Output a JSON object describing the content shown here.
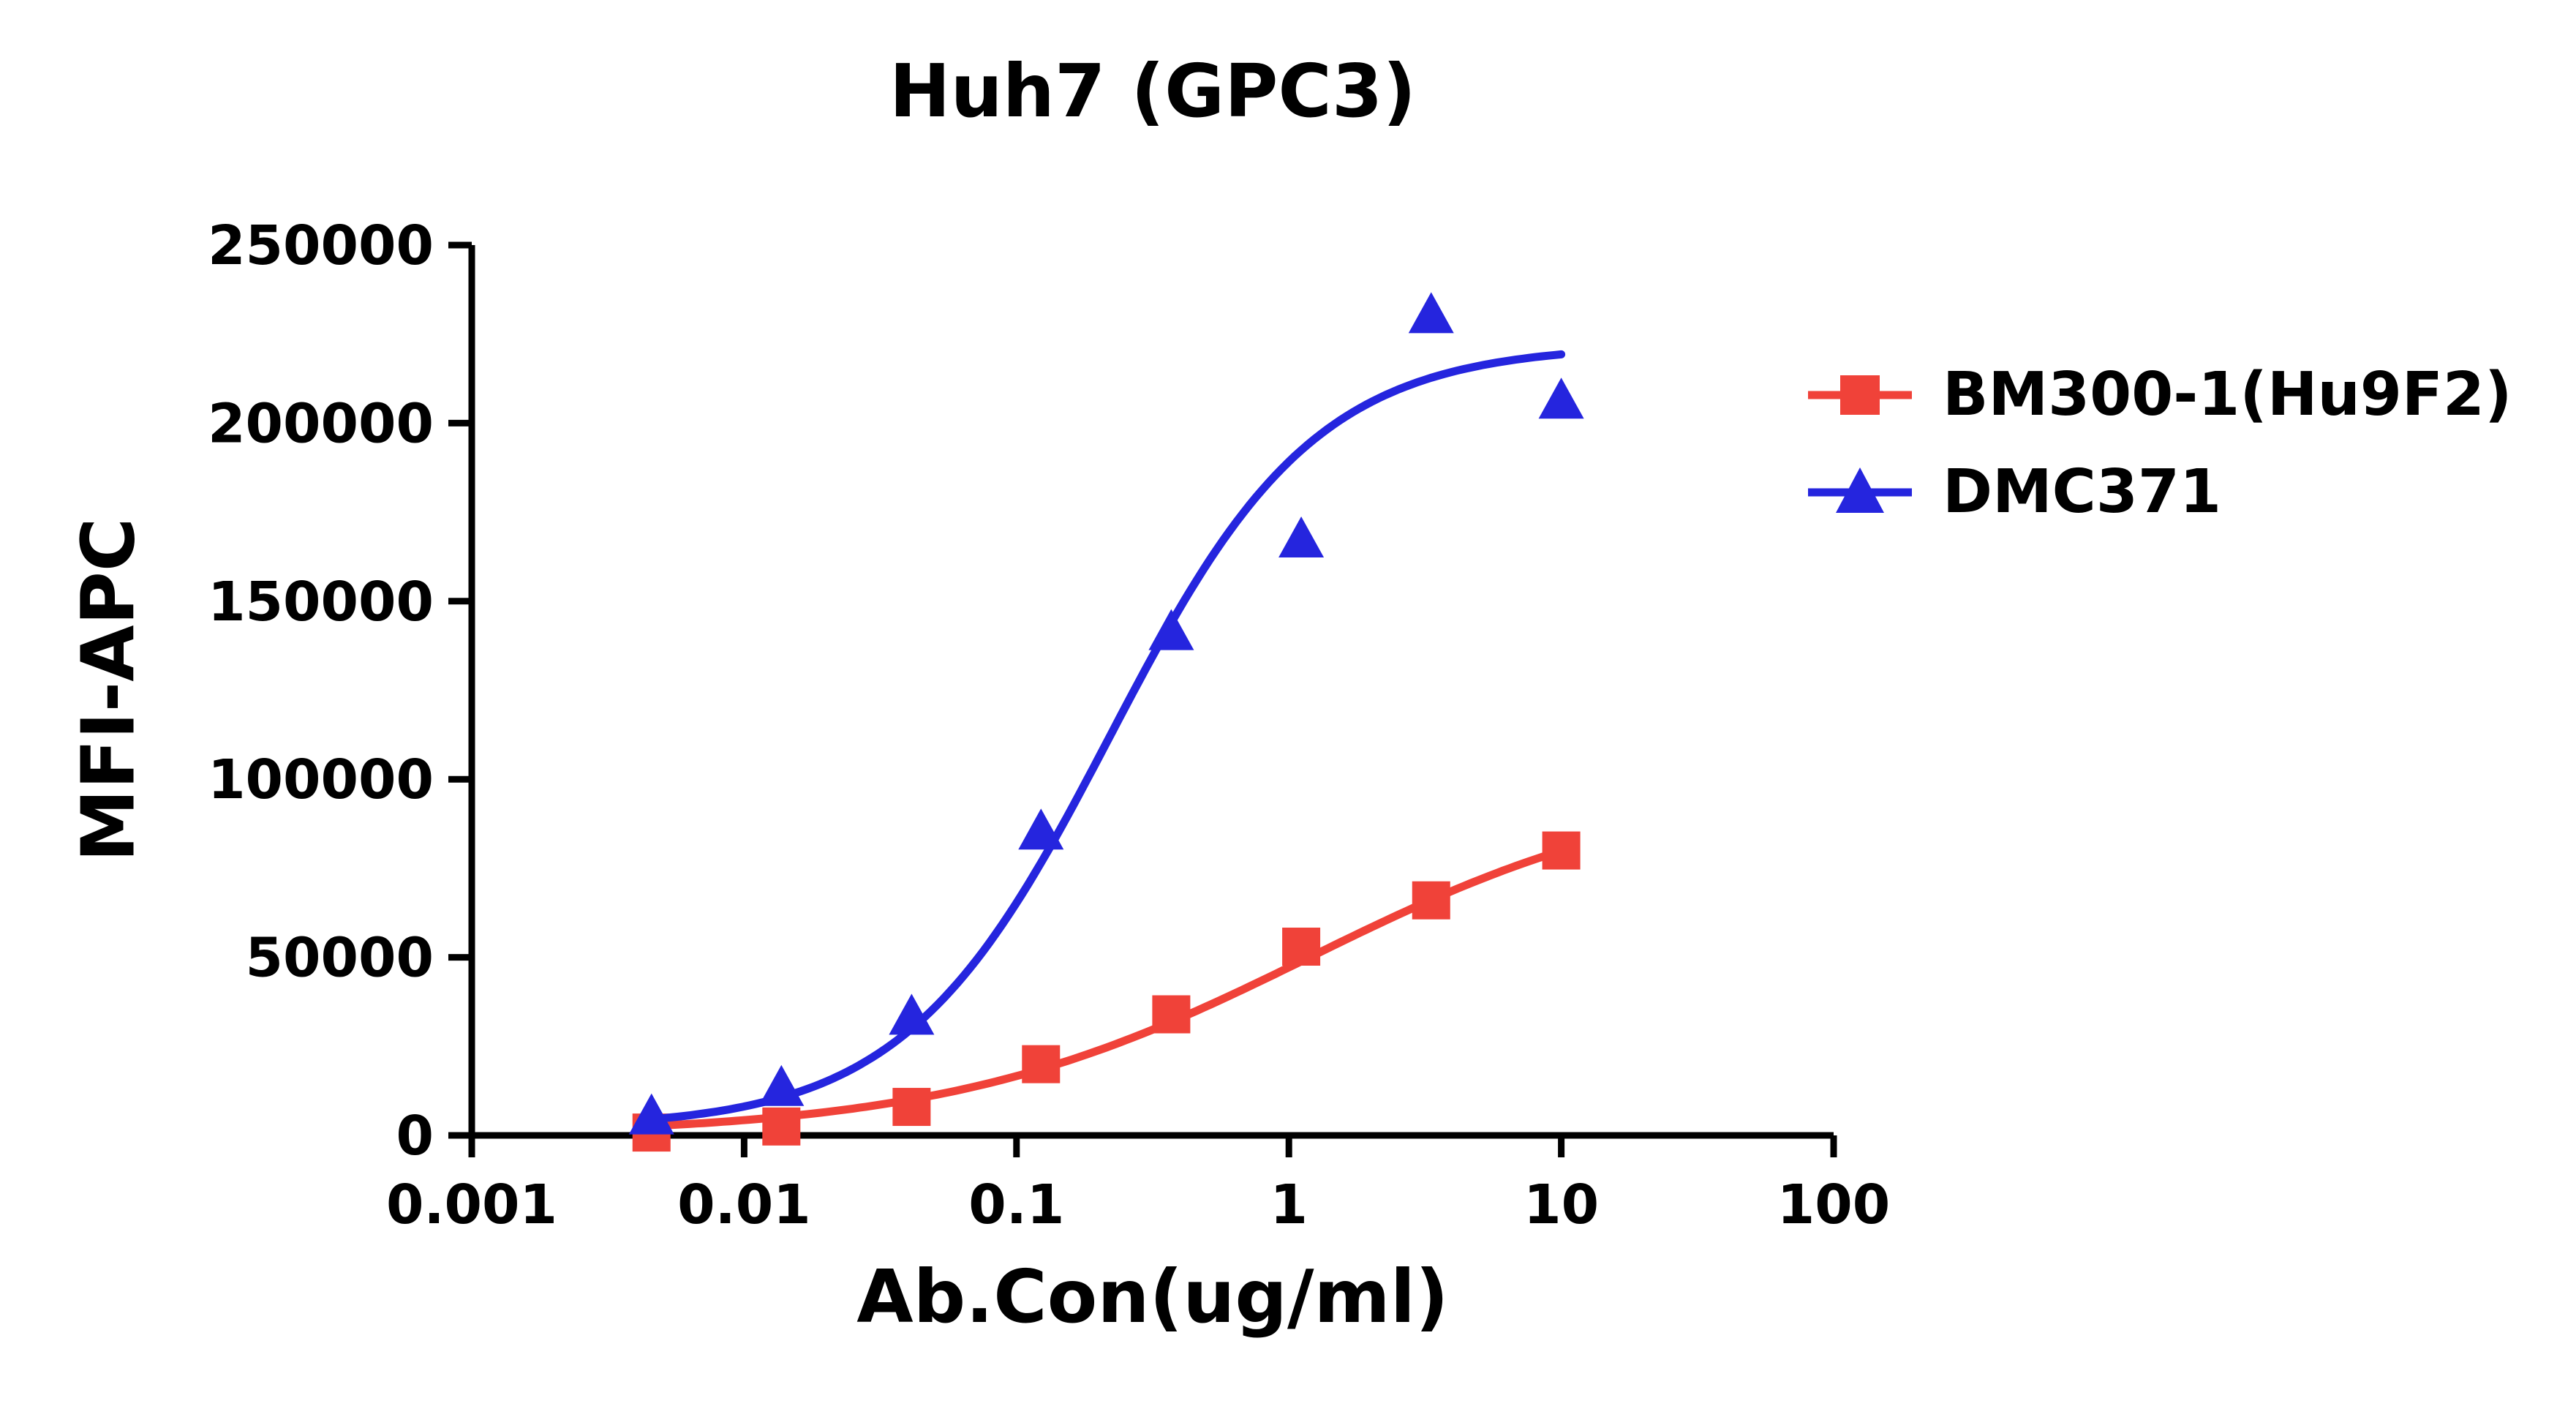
{
  "chart_data": {
    "type": "scatter",
    "title": "Huh7 (GPC3)",
    "xlabel": "Ab.Con(ug/ml)",
    "ylabel": "MFI-APC",
    "x_scale": "log10",
    "xlim": [
      0.001,
      100
    ],
    "ylim": [
      0,
      250000
    ],
    "x_ticks": [
      0.001,
      0.01,
      0.1,
      1,
      10,
      100
    ],
    "x_tick_labels": [
      "0.001",
      "0.01",
      "0.1",
      "1",
      "10",
      "100"
    ],
    "y_ticks": [
      0,
      50000,
      100000,
      150000,
      200000,
      250000
    ],
    "y_tick_labels": [
      "0",
      "50000",
      "100000",
      "150000",
      "200000",
      "250000"
    ],
    "grid": false,
    "legend_position": "right",
    "axis_color": "#000000",
    "series": [
      {
        "name": "BM300-1(Hu9F2)",
        "color": "#F04239",
        "marker": "square",
        "x": [
          0.00457,
          0.0137,
          0.0412,
          0.123,
          0.37,
          1.11,
          3.33,
          10
        ],
        "y": [
          800,
          2500,
          8000,
          20000,
          34000,
          53000,
          66000,
          80000
        ],
        "fit_4pl": {
          "bottom": 0,
          "top": 100000,
          "ec50": 1.19,
          "hill": 0.65
        }
      },
      {
        "name": "DMC371",
        "color": "#2525DE",
        "marker": "triangle",
        "x": [
          0.00457,
          0.0137,
          0.0412,
          0.123,
          0.37,
          1.11,
          3.33,
          10
        ],
        "y": [
          5000,
          13000,
          33000,
          85000,
          141000,
          167000,
          230000,
          206000
        ],
        "fit_4pl": {
          "bottom": 2000,
          "top": 222000,
          "ec50": 0.22,
          "hill": 1.15
        }
      }
    ]
  }
}
